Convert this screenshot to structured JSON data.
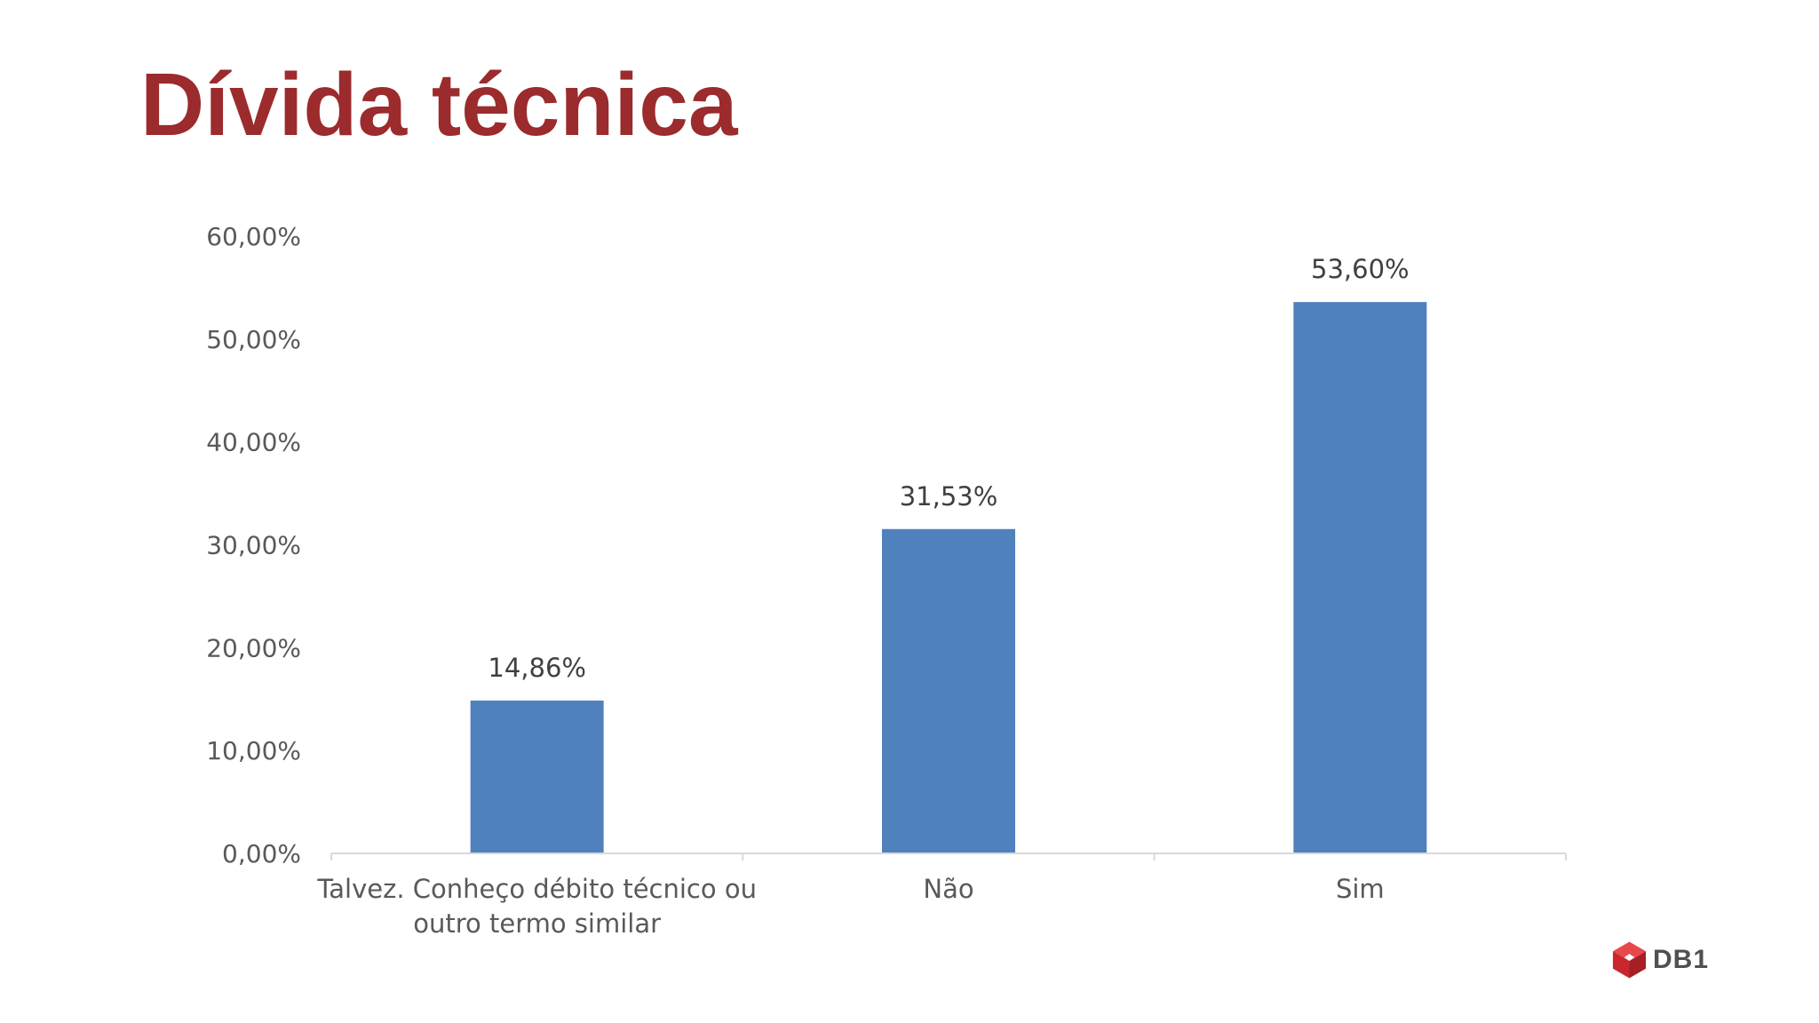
{
  "slide": {
    "title": "Dívida técnica"
  },
  "logo": {
    "text": "DB1",
    "icon": "db1-cube-logo-icon",
    "color": "#d62f36"
  },
  "chart_data": {
    "type": "bar",
    "categories": [
      [
        "Talvez. Conheço débito técnico ou",
        "outro termo similar"
      ],
      [
        "Não"
      ],
      [
        "Sim"
      ]
    ],
    "values": [
      14.86,
      31.53,
      53.6
    ],
    "data_labels": [
      "14,86%",
      "31,53%",
      "53,60%"
    ],
    "y_ticks": [
      "0,00%",
      "10,00%",
      "20,00%",
      "30,00%",
      "40,00%",
      "50,00%",
      "60,00%"
    ],
    "ylim": [
      0,
      60
    ],
    "grid": false,
    "legend": "none",
    "bar_color": "#4f81bd",
    "title": "",
    "xlabel": "",
    "ylabel": ""
  }
}
